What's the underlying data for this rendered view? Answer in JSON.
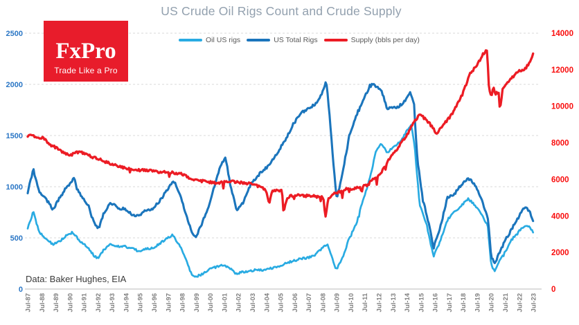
{
  "title": "US Crude Oil Rigs Count and Crude Supply",
  "logo": {
    "brand": "FxPro",
    "tagline": "Trade Like a Pro"
  },
  "source_note": "Data: Baker Hughes, EIA",
  "colors": {
    "title": "#92a0ae",
    "logo_bg": "#e81c2b",
    "logo_text": "#ffffff",
    "oil_rigs": "#29abe2",
    "total_rigs": "#1b75bc",
    "supply": "#ec1c24",
    "left_axis_labels": "#2a76c5",
    "right_axis_labels": "#f90d0d",
    "x_axis_labels": "#7f7f7f",
    "gridline": "#d9d9d9",
    "axis_line": "#c6c6c6",
    "legend_text": "#595959",
    "source_text": "#3a3a3a"
  },
  "chart_data": {
    "type": "line",
    "title": "US Crude Oil Rigs Count and Crude Supply",
    "grid": "horizontal-dashed",
    "legend_position": "top",
    "x_range_years": [
      1987.5,
      2023.5
    ],
    "x_tick_labels": [
      "Jul-87",
      "Jul-88",
      "Jul-89",
      "Jul-90",
      "Jul-91",
      "Jul-92",
      "Jul-93",
      "Jul-94",
      "Jul-95",
      "Jul-96",
      "Jul-97",
      "Jul-98",
      "Jul-99",
      "Jul-00",
      "Jul-01",
      "Jul-02",
      "Jul-03",
      "Jul-04",
      "Jul-05",
      "Jul-06",
      "Jul-07",
      "Jul-08",
      "Jul-09",
      "Jul-10",
      "Jul-11",
      "Jul-12",
      "Jul-13",
      "Jul-14",
      "Jul-15",
      "Jul-16",
      "Jul-17",
      "Jul-18",
      "Jul-19",
      "Jul-20",
      "Jul-21",
      "Jul-22",
      "Jul-23"
    ],
    "left_axis": {
      "label_series": "rig counts",
      "min": 0,
      "max": 2500,
      "tick_step": 500,
      "ticks": [
        0,
        500,
        1000,
        1500,
        2000,
        2500
      ]
    },
    "right_axis": {
      "label_series": "supply",
      "min": 0,
      "max": 14000,
      "tick_step": 2000,
      "ticks": [
        0,
        2000,
        4000,
        6000,
        8000,
        10000,
        12000,
        14000
      ]
    },
    "series": [
      {
        "name": "Oil US rigs",
        "axis": "left",
        "color": "#29abe2",
        "anchors": [
          [
            1987.5,
            600
          ],
          [
            1987.9,
            755
          ],
          [
            1988.3,
            560
          ],
          [
            1988.8,
            495
          ],
          [
            1989.3,
            435
          ],
          [
            1989.8,
            470
          ],
          [
            1990.3,
            530
          ],
          [
            1990.7,
            555
          ],
          [
            1991.2,
            470
          ],
          [
            1991.7,
            415
          ],
          [
            1992.2,
            330
          ],
          [
            1992.5,
            300
          ],
          [
            1992.9,
            380
          ],
          [
            1993.4,
            440
          ],
          [
            1993.9,
            420
          ],
          [
            1994.4,
            415
          ],
          [
            1994.9,
            400
          ],
          [
            1995.4,
            370
          ],
          [
            1995.9,
            390
          ],
          [
            1996.4,
            400
          ],
          [
            1996.9,
            445
          ],
          [
            1997.4,
            490
          ],
          [
            1997.8,
            530
          ],
          [
            1998.3,
            430
          ],
          [
            1998.8,
            290
          ],
          [
            1999.1,
            160
          ],
          [
            1999.4,
            115
          ],
          [
            1999.9,
            145
          ],
          [
            2000.4,
            190
          ],
          [
            2000.9,
            215
          ],
          [
            2001.4,
            235
          ],
          [
            2001.9,
            205
          ],
          [
            2002.4,
            150
          ],
          [
            2002.9,
            170
          ],
          [
            2003.4,
            180
          ],
          [
            2003.9,
            190
          ],
          [
            2004.4,
            185
          ],
          [
            2004.9,
            205
          ],
          [
            2005.4,
            225
          ],
          [
            2005.9,
            255
          ],
          [
            2006.4,
            275
          ],
          [
            2006.9,
            295
          ],
          [
            2007.4,
            305
          ],
          [
            2007.9,
            325
          ],
          [
            2008.4,
            390
          ],
          [
            2008.85,
            440
          ],
          [
            2009.1,
            340
          ],
          [
            2009.45,
            185
          ],
          [
            2009.9,
            300
          ],
          [
            2010.4,
            500
          ],
          [
            2010.9,
            640
          ],
          [
            2011.4,
            880
          ],
          [
            2011.9,
            1100
          ],
          [
            2012.3,
            1350
          ],
          [
            2012.65,
            1430
          ],
          [
            2013.1,
            1335
          ],
          [
            2013.6,
            1390
          ],
          [
            2014.1,
            1450
          ],
          [
            2014.6,
            1570
          ],
          [
            2014.8,
            1605
          ],
          [
            2015.05,
            1400
          ],
          [
            2015.4,
            830
          ],
          [
            2015.9,
            630
          ],
          [
            2016.1,
            500
          ],
          [
            2016.4,
            320
          ],
          [
            2016.9,
            480
          ],
          [
            2017.4,
            680
          ],
          [
            2017.9,
            755
          ],
          [
            2018.4,
            820
          ],
          [
            2018.85,
            880
          ],
          [
            2019.2,
            840
          ],
          [
            2019.7,
            760
          ],
          [
            2020.0,
            680
          ],
          [
            2020.25,
            620
          ],
          [
            2020.5,
            230
          ],
          [
            2020.75,
            180
          ],
          [
            2021.0,
            250
          ],
          [
            2021.4,
            340
          ],
          [
            2021.9,
            470
          ],
          [
            2022.3,
            540
          ],
          [
            2022.75,
            605
          ],
          [
            2023.0,
            625
          ],
          [
            2023.3,
            595
          ],
          [
            2023.5,
            545
          ]
        ]
      },
      {
        "name": "US Total Rigs",
        "axis": "left",
        "color": "#1b75bc",
        "anchors": [
          [
            1987.5,
            940
          ],
          [
            1987.9,
            1170
          ],
          [
            1988.3,
            950
          ],
          [
            1988.8,
            880
          ],
          [
            1989.3,
            780
          ],
          [
            1989.8,
            900
          ],
          [
            1990.3,
            1000
          ],
          [
            1990.8,
            1080
          ],
          [
            1991.3,
            900
          ],
          [
            1991.8,
            820
          ],
          [
            1992.2,
            650
          ],
          [
            1992.5,
            600
          ],
          [
            1992.9,
            730
          ],
          [
            1993.4,
            850
          ],
          [
            1993.9,
            790
          ],
          [
            1994.4,
            780
          ],
          [
            1994.9,
            730
          ],
          [
            1995.4,
            720
          ],
          [
            1995.9,
            765
          ],
          [
            1996.4,
            790
          ],
          [
            1996.9,
            860
          ],
          [
            1997.4,
            960
          ],
          [
            1997.9,
            1060
          ],
          [
            1998.4,
            900
          ],
          [
            1998.9,
            670
          ],
          [
            1999.2,
            560
          ],
          [
            1999.45,
            495
          ],
          [
            1999.9,
            640
          ],
          [
            2000.4,
            810
          ],
          [
            2000.9,
            1060
          ],
          [
            2001.3,
            1230
          ],
          [
            2001.6,
            1280
          ],
          [
            2001.95,
            1000
          ],
          [
            2002.4,
            760
          ],
          [
            2002.9,
            860
          ],
          [
            2003.4,
            1030
          ],
          [
            2003.9,
            1110
          ],
          [
            2004.4,
            1170
          ],
          [
            2004.9,
            1260
          ],
          [
            2005.4,
            1360
          ],
          [
            2005.9,
            1470
          ],
          [
            2006.4,
            1610
          ],
          [
            2006.9,
            1710
          ],
          [
            2007.4,
            1760
          ],
          [
            2007.9,
            1800
          ],
          [
            2008.4,
            1890
          ],
          [
            2008.75,
            2030
          ],
          [
            2009.0,
            1700
          ],
          [
            2009.2,
            1330
          ],
          [
            2009.5,
            880
          ],
          [
            2009.9,
            1120
          ],
          [
            2010.4,
            1500
          ],
          [
            2010.9,
            1700
          ],
          [
            2011.4,
            1850
          ],
          [
            2011.9,
            2000
          ],
          [
            2012.2,
            1990
          ],
          [
            2012.7,
            1930
          ],
          [
            2013.1,
            1760
          ],
          [
            2013.6,
            1770
          ],
          [
            2014.1,
            1800
          ],
          [
            2014.55,
            1870
          ],
          [
            2014.75,
            1930
          ],
          [
            2015.0,
            1820
          ],
          [
            2015.25,
            1250
          ],
          [
            2015.65,
            870
          ],
          [
            2016.0,
            670
          ],
          [
            2016.4,
            405
          ],
          [
            2016.9,
            620
          ],
          [
            2017.4,
            900
          ],
          [
            2017.9,
            935
          ],
          [
            2018.4,
            1020
          ],
          [
            2018.9,
            1080
          ],
          [
            2019.2,
            1050
          ],
          [
            2019.7,
            920
          ],
          [
            2020.0,
            790
          ],
          [
            2020.25,
            720
          ],
          [
            2020.5,
            310
          ],
          [
            2020.75,
            250
          ],
          [
            2021.0,
            330
          ],
          [
            2021.4,
            450
          ],
          [
            2021.9,
            570
          ],
          [
            2022.3,
            670
          ],
          [
            2022.75,
            770
          ],
          [
            2023.0,
            800
          ],
          [
            2023.25,
            755
          ],
          [
            2023.5,
            655
          ]
        ]
      },
      {
        "name": "Supply (bbls per day)",
        "axis": "right",
        "color": "#ec1c24",
        "anchors": [
          [
            1987.5,
            8300
          ],
          [
            1987.7,
            8450
          ],
          [
            1988.1,
            8300
          ],
          [
            1988.6,
            8250
          ],
          [
            1989.1,
            7900
          ],
          [
            1989.6,
            7700
          ],
          [
            1990.1,
            7450
          ],
          [
            1990.5,
            7300
          ],
          [
            1991.0,
            7500
          ],
          [
            1991.5,
            7450
          ],
          [
            1992.0,
            7250
          ],
          [
            1992.5,
            7150
          ],
          [
            1993.0,
            6950
          ],
          [
            1993.5,
            6850
          ],
          [
            1994.0,
            6700
          ],
          [
            1994.5,
            6600
          ],
          [
            1995.0,
            6550
          ],
          [
            1995.5,
            6500
          ],
          [
            1996.0,
            6500
          ],
          [
            1996.5,
            6450
          ],
          [
            1997.0,
            6400
          ],
          [
            1997.5,
            6400
          ],
          [
            1998.0,
            6350
          ],
          [
            1998.5,
            6300
          ],
          [
            1999.0,
            6100
          ],
          [
            1999.5,
            5950
          ],
          [
            2000.0,
            5900
          ],
          [
            2000.5,
            5850
          ],
          [
            2001.0,
            5800
          ],
          [
            2001.5,
            5850
          ],
          [
            2002.0,
            5900
          ],
          [
            2002.5,
            5850
          ],
          [
            2003.0,
            5800
          ],
          [
            2003.5,
            5750
          ],
          [
            2004.0,
            5600
          ],
          [
            2004.45,
            5450
          ],
          [
            2004.7,
            4650
          ],
          [
            2004.85,
            5300
          ],
          [
            2005.2,
            5450
          ],
          [
            2005.6,
            5350
          ],
          [
            2005.72,
            4150
          ],
          [
            2005.9,
            4850
          ],
          [
            2006.1,
            5050
          ],
          [
            2006.6,
            5150
          ],
          [
            2007.1,
            5100
          ],
          [
            2007.6,
            5100
          ],
          [
            2008.1,
            5050
          ],
          [
            2008.55,
            5000
          ],
          [
            2008.7,
            3900
          ],
          [
            2008.9,
            4900
          ],
          [
            2009.2,
            5200
          ],
          [
            2009.7,
            5300
          ],
          [
            2010.2,
            5500
          ],
          [
            2010.7,
            5500
          ],
          [
            2011.2,
            5600
          ],
          [
            2011.7,
            5700
          ],
          [
            2012.1,
            6000
          ],
          [
            2012.6,
            6300
          ],
          [
            2013.1,
            6950
          ],
          [
            2013.6,
            7450
          ],
          [
            2014.1,
            8000
          ],
          [
            2014.6,
            8550
          ],
          [
            2015.0,
            9150
          ],
          [
            2015.45,
            9550
          ],
          [
            2015.8,
            9300
          ],
          [
            2016.2,
            9000
          ],
          [
            2016.6,
            8500
          ],
          [
            2017.0,
            8900
          ],
          [
            2017.5,
            9350
          ],
          [
            2018.0,
            9950
          ],
          [
            2018.5,
            10750
          ],
          [
            2019.0,
            11800
          ],
          [
            2019.5,
            12250
          ],
          [
            2019.9,
            12850
          ],
          [
            2020.2,
            13100
          ],
          [
            2020.35,
            10900
          ],
          [
            2020.5,
            10500
          ],
          [
            2020.65,
            11100
          ],
          [
            2020.8,
            10600
          ],
          [
            2021.0,
            11000
          ],
          [
            2021.13,
            9750
          ],
          [
            2021.3,
            10900
          ],
          [
            2021.6,
            11200
          ],
          [
            2021.95,
            11550
          ],
          [
            2022.4,
            11900
          ],
          [
            2022.9,
            12050
          ],
          [
            2023.2,
            12350
          ],
          [
            2023.42,
            12700
          ],
          [
            2023.5,
            12950
          ]
        ]
      }
    ],
    "render": {
      "seed": 1987,
      "step_years": 0.07,
      "jitter": [
        10,
        14,
        70
      ],
      "dip_prob": [
        0.02,
        0.02,
        0.055
      ],
      "dip_depth": [
        45,
        55,
        420
      ],
      "stroke_width": [
        2.7,
        3.1,
        3.3
      ]
    }
  }
}
